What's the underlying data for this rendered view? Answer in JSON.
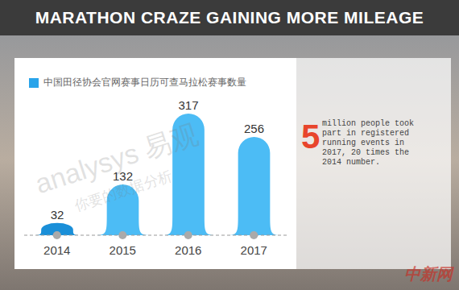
{
  "chart_data": {
    "type": "bar",
    "title": "MARATHON CRAZE GAINING MORE MILEAGE",
    "categories": [
      "2014",
      "2015",
      "2016",
      "2017"
    ],
    "series": [
      {
        "name": "中国田径协会官网赛事日历可查马拉松赛事数量",
        "color": "#2aa4ea",
        "colors": [
          "#1a8fd8",
          "#4cbcf5",
          "#4cbcf5",
          "#4cbcf5"
        ],
        "values": [
          32,
          132,
          317,
          256
        ]
      }
    ],
    "ylim": [
      0,
      340
    ],
    "grid": false,
    "data_labels": true,
    "tick_labels": "x",
    "legend": "top left",
    "annotations": [
      {
        "highlight": "5",
        "text": "million people took part in registered running events in 2017, 20 times the 2014 number."
      }
    ],
    "watermarks": [
      "analysys 易观",
      "你要的数据分析"
    ],
    "source": "中新网"
  }
}
